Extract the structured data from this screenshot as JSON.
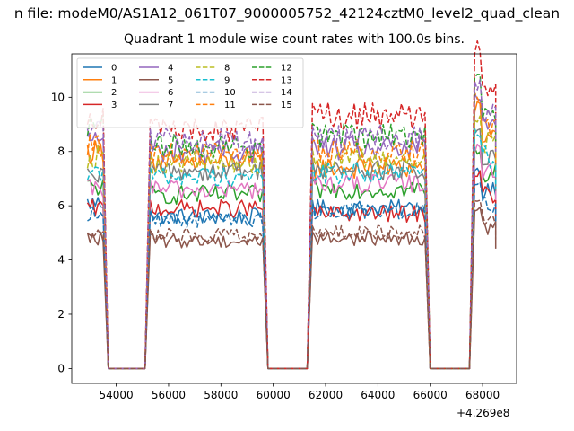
{
  "figure": {
    "suptitle": "n file: modeM0/AS1A12_061T07_9000005752_42124cztM0_level2_quad_clean",
    "title": "Quadrant 1 module wise count rates with 100.0s bins."
  },
  "chart_data": {
    "type": "line",
    "title": "Quadrant 1 module wise count rates with 100.0s bins.",
    "xlabel": "",
    "ylabel": "",
    "x_offset_label": "+4.269e8",
    "xlim": [
      52300,
      69300
    ],
    "ylim": [
      -0.55,
      11.6
    ],
    "x_ticks": [
      54000,
      56000,
      58000,
      60000,
      62000,
      64000,
      66000,
      68000
    ],
    "y_ticks": [
      0,
      2,
      4,
      6,
      8,
      10
    ],
    "grid": false,
    "legend": {
      "placement": "top-left",
      "columns": 4
    },
    "segments": [
      {
        "on_start": 52900,
        "on_end": 53500,
        "off_start": 53700,
        "off_end": 55100
      },
      {
        "on_start": 55300,
        "on_end": 59600,
        "off_start": 59800,
        "off_end": 61300
      },
      {
        "on_start": 61500,
        "on_end": 65800,
        "off_start": 66000,
        "off_end": 67500
      },
      {
        "on_start": 67700,
        "on_end": 68500,
        "off_start": null,
        "off_end": null
      }
    ],
    "series": [
      {
        "name": "0",
        "color": "#1f77b4",
        "style": "solid",
        "mean_first": 6.1,
        "mean_second": 5.6,
        "mean_third": 5.9,
        "mean_fourth": 6.5
      },
      {
        "name": "1",
        "color": "#ff7f0e",
        "style": "solid",
        "mean_first": 8.0,
        "mean_second": 7.6,
        "mean_third": 7.4,
        "mean_fourth": 8.6
      },
      {
        "name": "2",
        "color": "#2ca02c",
        "style": "solid",
        "mean_first": 6.7,
        "mean_second": 6.4,
        "mean_third": 6.6,
        "mean_fourth": 7.2
      },
      {
        "name": "3",
        "color": "#d62728",
        "style": "solid",
        "mean_first": 5.9,
        "mean_second": 5.9,
        "mean_third": 5.7,
        "mean_fourth": 6.4
      },
      {
        "name": "4",
        "color": "#9467bd",
        "style": "solid",
        "mean_first": 8.5,
        "mean_second": 8.0,
        "mean_third": 8.1,
        "mean_fourth": 8.9
      },
      {
        "name": "5",
        "color": "#8c564b",
        "style": "solid",
        "mean_first": 4.8,
        "mean_second": 4.7,
        "mean_third": 4.8,
        "mean_fourth": 5.2
      },
      {
        "name": "6",
        "color": "#e377c2",
        "style": "solid",
        "mean_first": 6.6,
        "mean_second": 6.6,
        "mean_third": 6.8,
        "mean_fourth": 7.3
      },
      {
        "name": "7",
        "color": "#7f7f7f",
        "style": "solid",
        "mean_first": 7.0,
        "mean_second": 7.3,
        "mean_third": 7.3,
        "mean_fourth": 7.7
      },
      {
        "name": "8",
        "color": "#bcbd22",
        "style": "dashed",
        "mean_first": 7.8,
        "mean_second": 7.6,
        "mean_third": 7.7,
        "mean_fourth": 8.3
      },
      {
        "name": "9",
        "color": "#17becf",
        "style": "dashed",
        "mean_first": 7.3,
        "mean_second": 7.1,
        "mean_third": 7.2,
        "mean_fourth": 7.8
      },
      {
        "name": "10",
        "color": "#1f77b4",
        "style": "dashed",
        "mean_first": 5.7,
        "mean_second": 5.5,
        "mean_third": 5.8,
        "mean_fourth": 6.1
      },
      {
        "name": "11",
        "color": "#ff7f0e",
        "style": "dashed",
        "mean_first": 8.2,
        "mean_second": 7.9,
        "mean_third": 8.0,
        "mean_fourth": 8.9
      },
      {
        "name": "12",
        "color": "#2ca02c",
        "style": "dashed",
        "mean_first": 8.9,
        "mean_second": 8.2,
        "mean_third": 8.6,
        "mean_fourth": 9.6
      },
      {
        "name": "13",
        "color": "#d62728",
        "style": "dashed",
        "mean_first": 9.3,
        "mean_second": 8.8,
        "mean_third": 9.3,
        "mean_fourth": 10.6
      },
      {
        "name": "14",
        "color": "#9467bd",
        "style": "dashed",
        "mean_first": 8.8,
        "mean_second": 8.4,
        "mean_third": 8.5,
        "mean_fourth": 9.4
      },
      {
        "name": "15",
        "color": "#8c564b",
        "style": "dashed",
        "mean_first": 5.1,
        "mean_second": 4.9,
        "mean_third": 5.0,
        "mean_fourth": 5.6
      }
    ],
    "extra_series_colors": {
      "pink_overlay": "#f7b6d2"
    }
  }
}
